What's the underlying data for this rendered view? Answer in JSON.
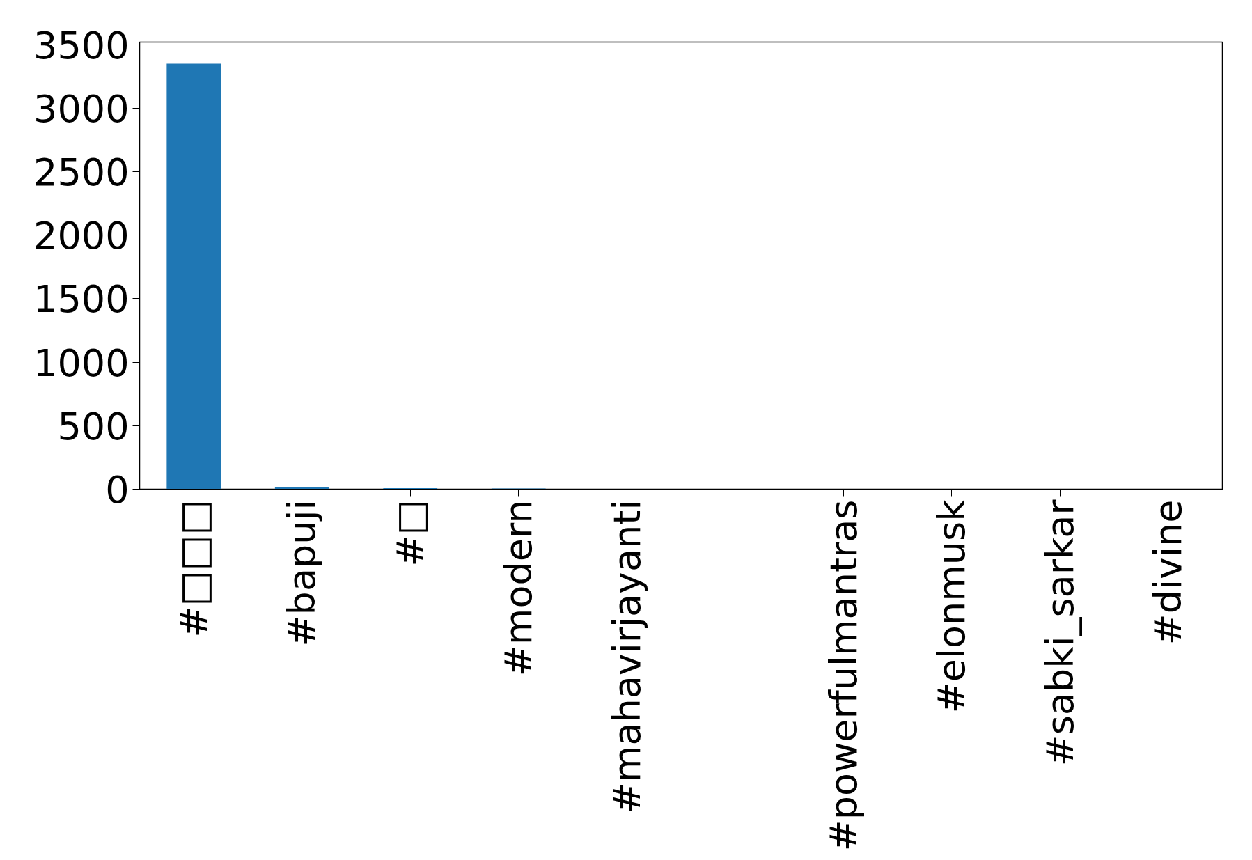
{
  "chart_data": {
    "type": "bar",
    "categories": [
      "#□□□",
      "#bapuji",
      "#□",
      "#modern",
      "#mahavirjayanti",
      null,
      "#powerfulmantras",
      "#elonmusk",
      "#sabki_sarkar",
      "#divine"
    ],
    "values": [
      3350,
      15,
      8,
      6,
      null,
      null,
      null,
      null,
      null,
      null
    ],
    "color": "#1f77b4",
    "ylim": [
      0,
      3520
    ],
    "yticks": [
      0,
      500,
      1000,
      1500,
      2000,
      2500,
      3000,
      3500
    ],
    "grid": false
  }
}
